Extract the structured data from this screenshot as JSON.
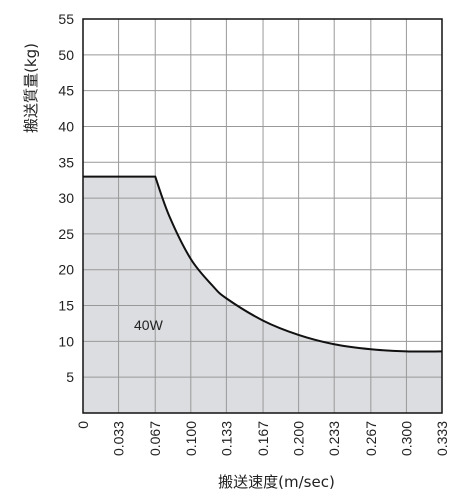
{
  "chart_data": {
    "type": "area",
    "xlabel": "搬送速度(m/sec)",
    "ylabel": "搬送質量(kg)",
    "xlim": [
      0,
      0.333
    ],
    "ylim": [
      0,
      55
    ],
    "grid": true,
    "x_ticks": [
      0,
      0.033,
      0.067,
      0.1,
      0.133,
      0.167,
      0.2,
      0.233,
      0.267,
      0.3,
      0.333
    ],
    "x_tick_labels": [
      "0",
      "0.033",
      "0.067",
      "0.100",
      "0.133",
      "0.167",
      "0.200",
      "0.233",
      "0.267",
      "0.300",
      "0.333"
    ],
    "y_ticks": [
      5,
      10,
      15,
      20,
      25,
      30,
      35,
      40,
      45,
      50,
      55
    ],
    "y_tick_labels": [
      "5",
      "10",
      "15",
      "20",
      "25",
      "30",
      "35",
      "40",
      "45",
      "50",
      "55"
    ],
    "series": [
      {
        "name": "40W",
        "x": [
          0,
          0.067,
          0.08,
          0.1,
          0.12,
          0.133,
          0.167,
          0.2,
          0.233,
          0.267,
          0.3,
          0.333
        ],
        "y": [
          33,
          33,
          27.5,
          21.5,
          17.8,
          16,
          12.9,
          10.9,
          9.6,
          8.9,
          8.6,
          8.6
        ]
      }
    ],
    "fill_color": "#dcdde0",
    "line_color": "#111111",
    "grid_color": "#999999"
  }
}
